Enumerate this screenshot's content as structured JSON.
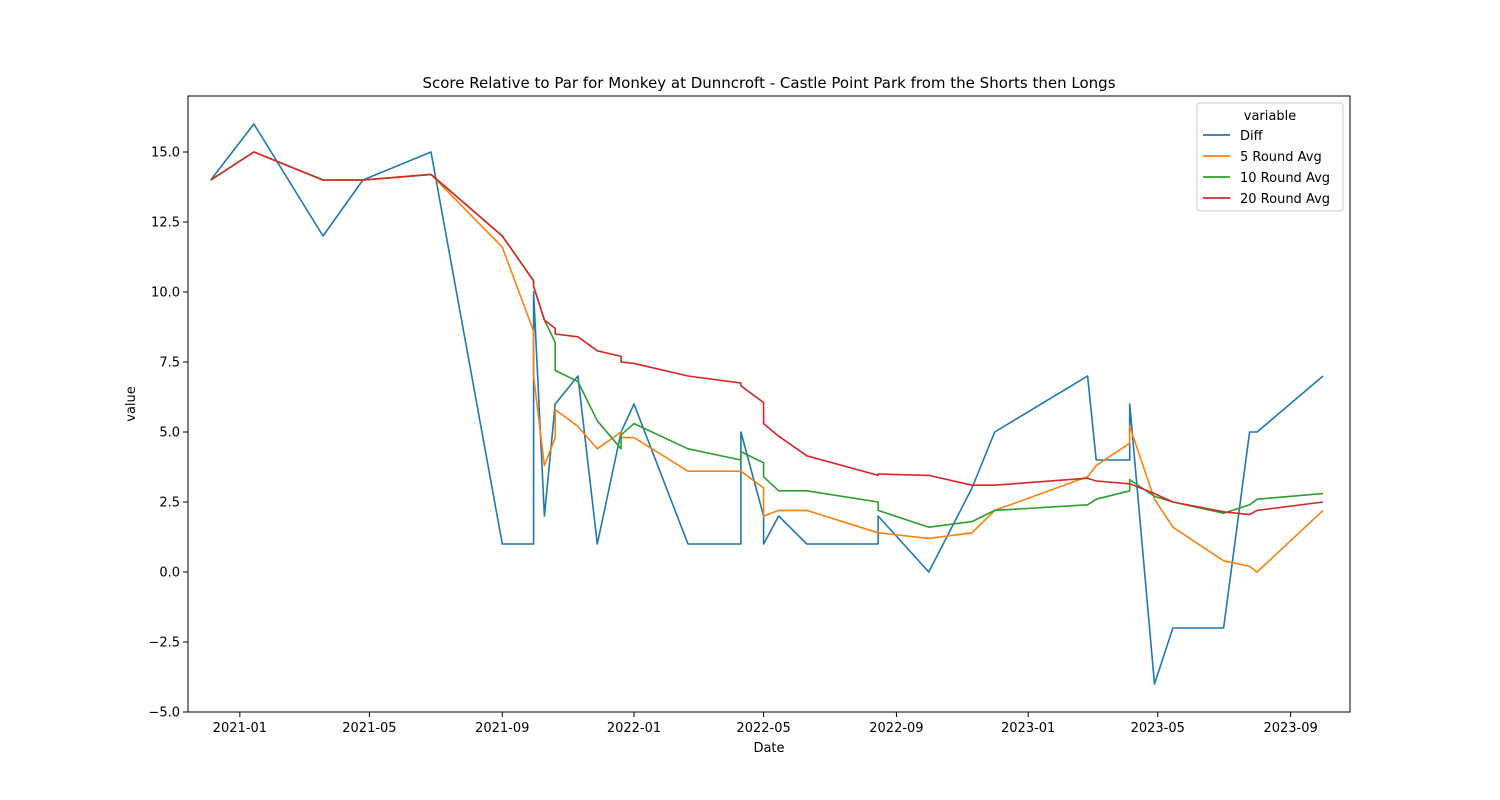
{
  "chart_data": {
    "type": "line",
    "title": "Score Relative to Par for Monkey at Dunncroft - Castle Point Park from the Shorts then Longs",
    "xlabel": "Date",
    "ylabel": "value",
    "xlim": [
      "2020-11-14",
      "2023-10-26"
    ],
    "ylim": [
      -5,
      17
    ],
    "x_ticks": [
      "2021-01-01",
      "2021-05-01",
      "2021-09-01",
      "2022-01-01",
      "2022-05-01",
      "2022-09-01",
      "2023-01-01",
      "2023-05-01",
      "2023-09-01"
    ],
    "x_tick_labels": [
      "2021-01",
      "2021-05",
      "2021-09",
      "2022-01",
      "2022-05",
      "2022-09",
      "2023-01",
      "2023-05",
      "2023-09"
    ],
    "y_ticks": [
      -5.0,
      -2.5,
      0.0,
      2.5,
      5.0,
      7.5,
      10.0,
      12.5,
      15.0
    ],
    "y_tick_labels": [
      "−5.0",
      "−2.5",
      "0.0",
      "2.5",
      "5.0",
      "7.5",
      "10.0",
      "12.5",
      "15.0"
    ],
    "grid": false,
    "legend": {
      "title": "variable",
      "position": "upper right"
    },
    "x": [
      "2020-12-05",
      "2021-01-14",
      "2021-03-19",
      "2021-04-25",
      "2021-06-27",
      "2021-09-01",
      "2021-09-30",
      "2021-09-30",
      "2021-10-10",
      "2021-10-20",
      "2021-10-20",
      "2021-11-10",
      "2021-11-28",
      "2021-12-20",
      "2021-12-20",
      "2022-01-01",
      "2022-02-20",
      "2022-04-10",
      "2022-04-10",
      "2022-05-01",
      "2022-05-01",
      "2022-05-15",
      "2022-06-10",
      "2022-08-15",
      "2022-08-15",
      "2022-10-01",
      "2022-11-10",
      "2022-12-01",
      "2023-02-25",
      "2023-03-05",
      "2023-04-05",
      "2023-04-05",
      "2023-04-28",
      "2023-05-15",
      "2023-07-01",
      "2023-07-25",
      "2023-08-01",
      "2023-10-01"
    ],
    "series": [
      {
        "name": "Diff",
        "color": "#1f77b4",
        "values": [
          14,
          16,
          12,
          14,
          15,
          1,
          1,
          10,
          2,
          6,
          6,
          7,
          1,
          5,
          5,
          6,
          1,
          1,
          5,
          2,
          1,
          2,
          1,
          1,
          2,
          0,
          3,
          5,
          7,
          4,
          4,
          6,
          -4,
          -2,
          -2,
          5,
          5,
          7
        ]
      },
      {
        "name": "5 Round Avg",
        "color": "#ff7f0e",
        "values": [
          14,
          15,
          14,
          14,
          14.2,
          11.6,
          8.6,
          7.0,
          3.8,
          4.8,
          5.8,
          5.2,
          4.4,
          5.0,
          4.8,
          4.8,
          3.6,
          3.6,
          3.6,
          3.0,
          2.0,
          2.2,
          2.2,
          1.4,
          1.4,
          1.2,
          1.4,
          2.2,
          3.4,
          3.8,
          4.6,
          5.2,
          2.6,
          1.6,
          0.4,
          0.2,
          0.0,
          2.2
        ]
      },
      {
        "name": "10 Round Avg",
        "color": "#2ca02c",
        "values": [
          14,
          15,
          14,
          14,
          14.2,
          12.0,
          10.4,
          10.2,
          9.0,
          8.2,
          7.2,
          6.8,
          5.4,
          4.4,
          4.9,
          5.3,
          4.4,
          4.0,
          4.3,
          3.9,
          3.4,
          2.9,
          2.9,
          2.5,
          2.2,
          1.6,
          1.8,
          2.2,
          2.4,
          2.6,
          2.9,
          3.3,
          2.7,
          2.5,
          2.1,
          2.4,
          2.6,
          2.8
        ]
      },
      {
        "name": "20 Round Avg",
        "color": "#d62728",
        "values": [
          14,
          15,
          14,
          14,
          14.2,
          12.0,
          10.4,
          10.2,
          9.0,
          8.7,
          8.5,
          8.4,
          7.9,
          7.7,
          7.5,
          7.45,
          7.0,
          6.75,
          6.65,
          6.05,
          5.3,
          4.85,
          4.15,
          3.45,
          3.5,
          3.45,
          3.1,
          3.1,
          3.35,
          3.25,
          3.15,
          3.15,
          2.8,
          2.5,
          2.15,
          2.05,
          2.2,
          2.5
        ]
      }
    ]
  }
}
